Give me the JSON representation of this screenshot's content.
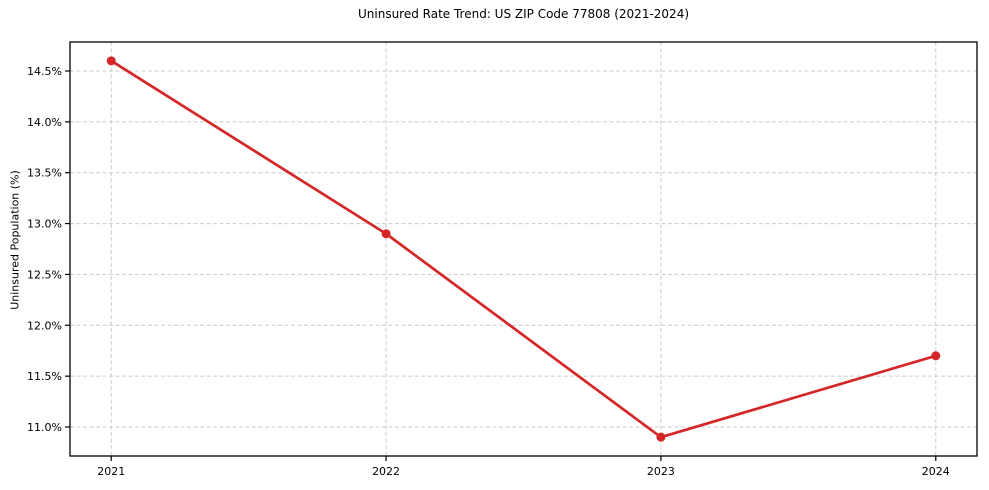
{
  "figure": {
    "background": "#ffffff"
  },
  "chart_data": {
    "type": "line",
    "title": "Uninsured Rate Trend: US ZIP Code 77808 (2021-2024)",
    "xlabel": "",
    "ylabel": "Uninsured Population (%)",
    "x": [
      2021,
      2022,
      2023,
      2024
    ],
    "x_tick_labels": [
      "2021",
      "2022",
      "2023",
      "2024"
    ],
    "y_ticks": [
      11.0,
      11.5,
      12.0,
      12.5,
      13.0,
      13.5,
      14.0,
      14.5
    ],
    "y_tick_labels": [
      "11.0%",
      "11.5%",
      "12.0%",
      "12.5%",
      "13.0%",
      "13.5%",
      "14.0%",
      "14.5%"
    ],
    "series": [
      {
        "values": [
          14.6,
          12.9,
          10.9,
          11.7
        ],
        "color": "#d62728",
        "marker": "circle"
      }
    ],
    "xlim": [
      2020.85,
      2024.15
    ],
    "ylim": [
      10.715,
      14.785
    ],
    "grid": true,
    "grid_style": "dashed",
    "grid_color": "#cccccc",
    "axis_color": "#000000",
    "legend_position": "none"
  }
}
